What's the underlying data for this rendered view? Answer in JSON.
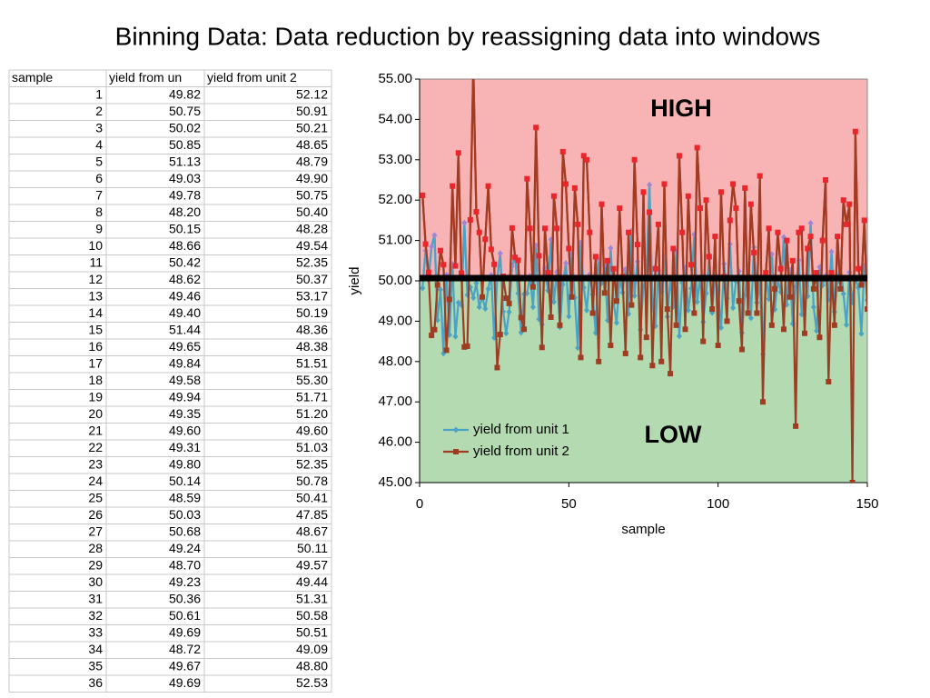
{
  "title": "Binning Data: Data reduction by reassigning data into windows",
  "table": {
    "header": [
      "sample",
      "yield from un",
      "yield from unit 2"
    ],
    "rows": [
      [
        "1",
        "49.82",
        "52.12"
      ],
      [
        "2",
        "50.75",
        "50.91"
      ],
      [
        "3",
        "50.02",
        "50.21"
      ],
      [
        "4",
        "50.85",
        "48.65"
      ],
      [
        "5",
        "51.13",
        "48.79"
      ],
      [
        "6",
        "49.03",
        "49.90"
      ],
      [
        "7",
        "49.78",
        "50.75"
      ],
      [
        "8",
        "48.20",
        "50.40"
      ],
      [
        "9",
        "50.15",
        "48.28"
      ],
      [
        "10",
        "48.66",
        "49.54"
      ],
      [
        "11",
        "50.42",
        "52.35"
      ],
      [
        "12",
        "48.62",
        "50.37"
      ],
      [
        "13",
        "49.46",
        "53.17"
      ],
      [
        "14",
        "49.40",
        "50.19"
      ],
      [
        "15",
        "51.44",
        "48.36"
      ],
      [
        "16",
        "49.65",
        "48.38"
      ],
      [
        "17",
        "49.84",
        "51.51"
      ],
      [
        "18",
        "49.58",
        "55.30"
      ],
      [
        "19",
        "49.94",
        "51.71"
      ],
      [
        "20",
        "49.35",
        "51.20"
      ],
      [
        "21",
        "49.60",
        "49.60"
      ],
      [
        "22",
        "49.31",
        "51.03"
      ],
      [
        "23",
        "49.80",
        "52.35"
      ],
      [
        "24",
        "50.14",
        "50.78"
      ],
      [
        "25",
        "48.59",
        "50.41"
      ],
      [
        "26",
        "50.03",
        "47.85"
      ],
      [
        "27",
        "50.68",
        "48.67"
      ],
      [
        "28",
        "49.24",
        "50.11"
      ],
      [
        "29",
        "48.70",
        "49.57"
      ],
      [
        "30",
        "49.23",
        "49.44"
      ],
      [
        "31",
        "50.36",
        "51.31"
      ],
      [
        "32",
        "50.61",
        "50.58"
      ],
      [
        "33",
        "49.69",
        "50.51"
      ],
      [
        "34",
        "48.72",
        "49.09"
      ],
      [
        "35",
        "49.67",
        "48.80"
      ],
      [
        "36",
        "49.69",
        "52.53"
      ]
    ]
  },
  "chart_data": {
    "type": "line",
    "xlabel": "sample",
    "ylabel": "yield",
    "annotations": [
      "HIGH",
      "LOW"
    ],
    "threshold": 50,
    "region_colors": {
      "above": "#f8b4b4",
      "below": "#b4dab2"
    },
    "legend": "lower left",
    "xlim": [
      0,
      150
    ],
    "xticks": [
      0,
      50,
      100,
      150
    ],
    "ylim": [
      45,
      55
    ],
    "yticks": [
      {
        "value": 45,
        "label": "45.00"
      },
      {
        "value": 46,
        "label": "46.00"
      },
      {
        "value": 47,
        "label": "47.00"
      },
      {
        "value": 48,
        "label": "48.00"
      },
      {
        "value": 49,
        "label": "49.00"
      },
      {
        "value": 50,
        "label": "50.00"
      },
      {
        "value": 51,
        "label": "51.00"
      },
      {
        "value": 52,
        "label": "52.00"
      },
      {
        "value": 53,
        "label": "53.00"
      },
      {
        "value": 54,
        "label": "54.00"
      },
      {
        "value": 55,
        "label": "55.00"
      }
    ],
    "x": [
      1,
      2,
      3,
      4,
      5,
      6,
      7,
      8,
      9,
      10,
      11,
      12,
      13,
      14,
      15,
      16,
      17,
      18,
      19,
      20,
      21,
      22,
      23,
      24,
      25,
      26,
      27,
      28,
      29,
      30,
      31,
      32,
      33,
      34,
      35,
      36,
      37,
      38,
      39,
      40,
      41,
      42,
      43,
      44,
      45,
      46,
      47,
      48,
      49,
      50,
      51,
      52,
      53,
      54,
      55,
      56,
      57,
      58,
      59,
      60,
      61,
      62,
      63,
      64,
      65,
      66,
      67,
      68,
      69,
      70,
      71,
      72,
      73,
      74,
      75,
      76,
      77,
      78,
      79,
      80,
      81,
      82,
      83,
      84,
      85,
      86,
      87,
      88,
      89,
      90,
      91,
      92,
      93,
      94,
      95,
      96,
      97,
      98,
      99,
      100,
      101,
      102,
      103,
      104,
      105,
      106,
      107,
      108,
      109,
      110,
      111,
      112,
      113,
      114,
      115,
      116,
      117,
      118,
      119,
      120,
      121,
      122,
      123,
      124,
      125,
      126,
      127,
      128,
      129,
      130,
      131,
      132,
      133,
      134,
      135,
      136,
      137,
      138,
      139,
      140,
      141,
      142,
      143,
      144,
      145,
      146,
      147,
      148,
      149,
      150
    ],
    "series": [
      {
        "name": "yield from unit 1",
        "color": "#4ba3c3",
        "color_above": "#9a88d6",
        "marker": "diamond",
        "values": [
          49.82,
          50.75,
          50.02,
          50.85,
          51.13,
          49.03,
          49.78,
          48.2,
          50.15,
          48.66,
          50.42,
          48.62,
          49.46,
          49.4,
          51.44,
          49.65,
          49.84,
          49.58,
          49.94,
          49.35,
          49.6,
          49.31,
          49.8,
          50.14,
          48.59,
          50.03,
          50.68,
          49.24,
          48.7,
          49.23,
          50.36,
          50.61,
          49.69,
          48.72,
          49.67,
          49.69,
          50.12,
          49.35,
          50.88,
          49.05,
          48.92,
          50.31,
          49.76,
          51.02,
          49.48,
          50.22,
          48.85,
          49.91,
          50.44,
          49.12,
          50.67,
          49.58,
          48.34,
          50.95,
          49.83,
          49.27,
          50.16,
          49.66,
          48.71,
          50.52,
          49.94,
          50.38,
          49.02,
          50.81,
          49.45,
          48.96,
          50.07,
          49.71,
          50.29,
          49.18,
          51.24,
          49.63,
          50.48,
          48.79,
          49.87,
          50.13,
          52.38,
          49.52,
          48.88,
          50.26,
          49.74,
          50.61,
          49.11,
          50.04,
          49.36,
          50.72,
          48.63,
          49.95,
          50.33,
          49.27,
          49.81,
          51.15,
          49.48,
          50.09,
          48.98,
          49.69,
          50.55,
          49.21,
          50.18,
          49.76,
          48.84,
          50.42,
          49.57,
          50.91,
          49.33,
          49.99,
          50.24,
          48.71,
          49.64,
          50.37,
          49.08,
          50.83,
          49.46,
          49.92,
          48.18,
          50.19,
          49.55,
          50.66,
          49.29,
          50.03,
          49.72,
          51.08,
          49.41,
          50.27,
          48.94,
          49.86,
          50.51,
          49.17,
          50.08,
          49.62,
          51.43,
          49.35,
          48.76,
          50.34,
          49.89,
          50.12,
          49.54,
          50.72,
          49.23,
          49.97,
          50.44,
          49.68,
          48.91,
          50.21,
          49.47,
          50.06,
          49.83,
          48.69,
          50.38,
          49.52
        ]
      },
      {
        "name": "yield from unit 2",
        "color": "#9e3d22",
        "color_above": "#e8262b",
        "marker": "square",
        "values": [
          52.12,
          50.91,
          50.21,
          48.65,
          48.79,
          49.9,
          50.75,
          50.4,
          48.28,
          49.54,
          52.35,
          50.37,
          53.17,
          50.19,
          48.36,
          48.38,
          51.51,
          55.3,
          51.71,
          51.2,
          49.6,
          51.03,
          52.35,
          50.78,
          50.41,
          47.85,
          48.67,
          50.11,
          49.57,
          49.44,
          51.31,
          50.58,
          50.51,
          49.09,
          48.8,
          52.53,
          51.3,
          49.85,
          53.8,
          50.62,
          48.35,
          51.3,
          50.2,
          49.1,
          52.1,
          51.3,
          48.9,
          53.2,
          52.4,
          50.8,
          49.6,
          52.3,
          51.4,
          48.1,
          53.1,
          53.0,
          51.2,
          49.2,
          50.6,
          48.0,
          51.9,
          49.7,
          50.5,
          48.4,
          50.3,
          49.5,
          51.8,
          50.1,
          48.2,
          51.2,
          49.4,
          53.0,
          50.9,
          48.1,
          52.2,
          48.6,
          51.7,
          47.9,
          50.3,
          51.4,
          48.0,
          52.4,
          49.3,
          47.7,
          50.8,
          48.9,
          53.1,
          51.2,
          48.8,
          52.1,
          50.4,
          49.2,
          53.3,
          51.8,
          48.5,
          52.0,
          50.6,
          49.3,
          51.1,
          48.4,
          52.2,
          50.1,
          49.0,
          51.5,
          52.4,
          51.8,
          49.5,
          48.3,
          52.3,
          49.2,
          51.9,
          50.7,
          49.2,
          52.6,
          47.0,
          50.2,
          51.3,
          48.9,
          49.8,
          51.2,
          50.3,
          48.8,
          51.0,
          49.6,
          50.5,
          46.4,
          51.2,
          51.3,
          48.7,
          50.8,
          51.1,
          49.8,
          50.2,
          48.6,
          51.0,
          52.5,
          47.5,
          50.2,
          48.9,
          51.1,
          49.8,
          52.0,
          51.4,
          51.9,
          45.0,
          53.7,
          50.3,
          49.9,
          51.5,
          49.3
        ]
      }
    ]
  }
}
